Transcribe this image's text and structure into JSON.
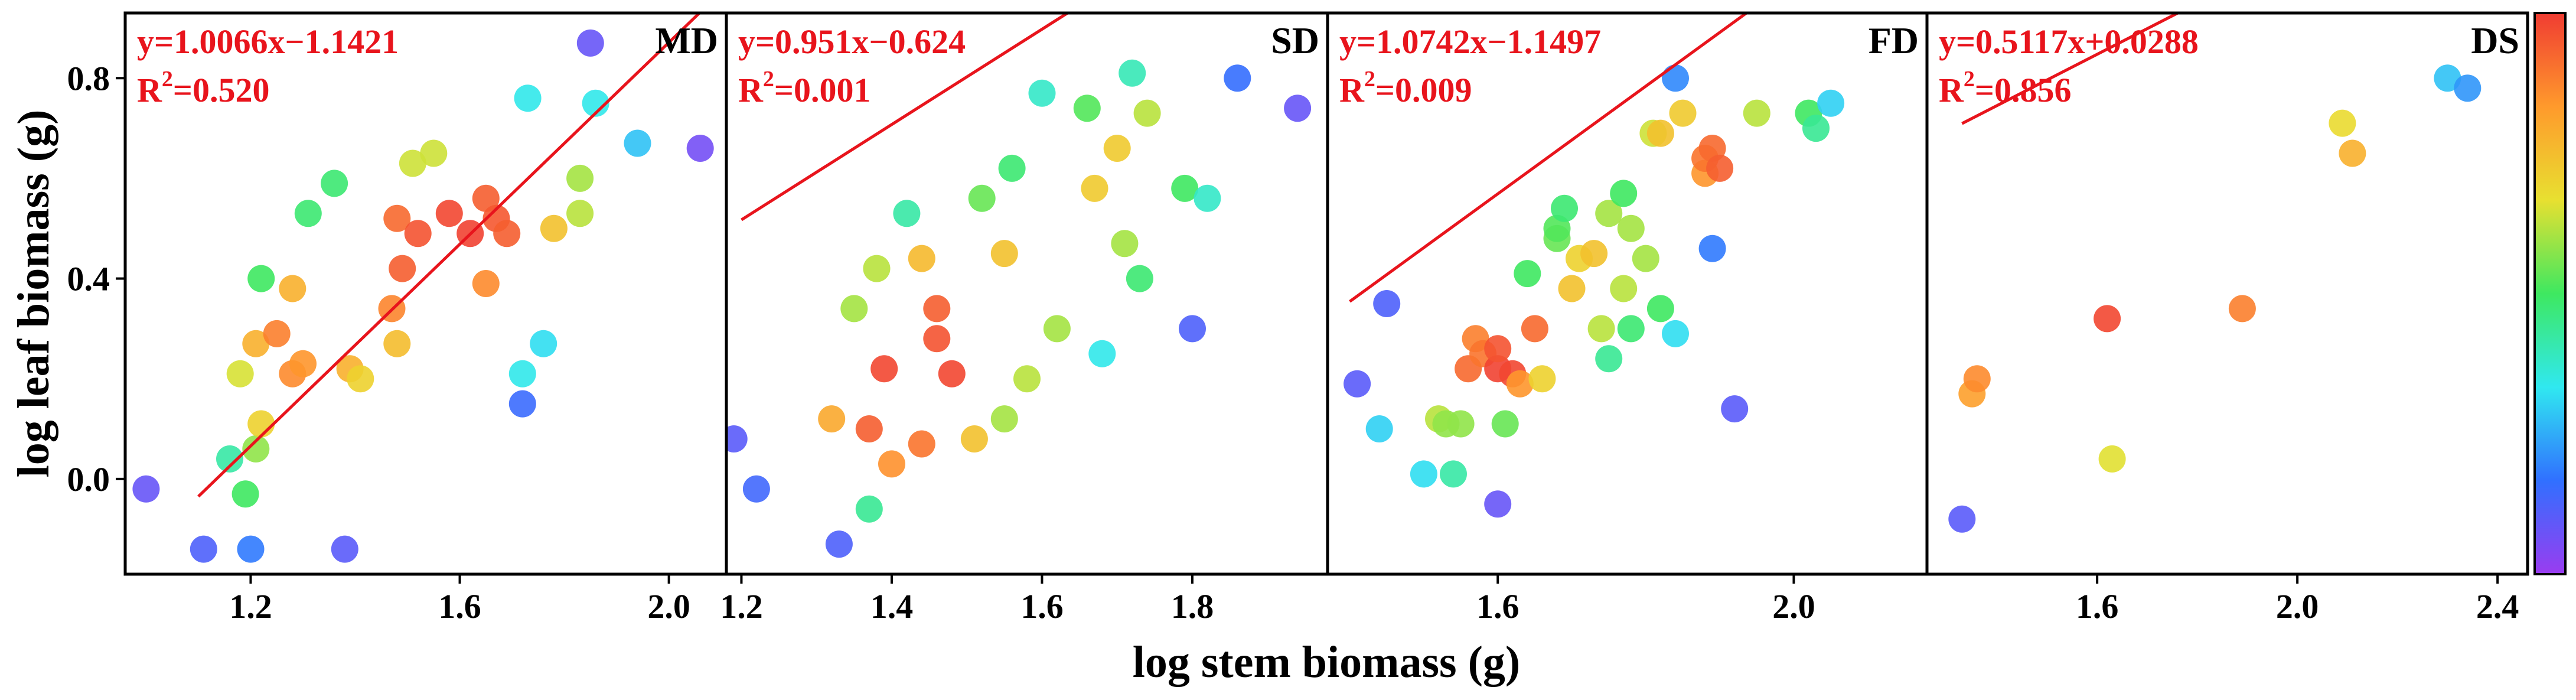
{
  "chart_data": {
    "type": "scatter",
    "ylabel": "log leaf biomass (g)",
    "xlabel": "log stem biomass (g)",
    "y_axis": {
      "range": [
        -0.19,
        0.93
      ],
      "ticks": [
        "0.0",
        "0.4",
        "0.8"
      ],
      "tick_values": [
        0.0,
        0.4,
        0.8
      ]
    },
    "colorbar": {
      "colors": [
        "#f03c32",
        "#ff9a2c",
        "#e8e030",
        "#3ee860",
        "#30e8f0",
        "#3070ff",
        "#9a3cf0"
      ]
    },
    "regression_color": "#e8141c",
    "panels": [
      {
        "name": "MD",
        "equation": "y=1.0066x−1.1421",
        "r2_label": "R",
        "r2_value": "=0.520",
        "x_range": [
          0.96,
          2.11
        ],
        "x_ticks": [
          "1.2",
          "1.6",
          "2.0"
        ],
        "x_tick_values": [
          1.2,
          1.6,
          2.0
        ],
        "fit": {
          "slope": 1.0066,
          "intercept": -1.1421,
          "x_start": 1.1,
          "x_end": 2.06
        },
        "points": [
          [
            1.0,
            -0.02,
            0.92
          ],
          [
            1.11,
            -0.14,
            0.88
          ],
          [
            1.2,
            -0.14,
            0.82
          ],
          [
            1.16,
            0.04,
            0.58
          ],
          [
            1.19,
            -0.03,
            0.5
          ],
          [
            1.21,
            0.06,
            0.42
          ],
          [
            1.22,
            0.11,
            0.3
          ],
          [
            1.18,
            0.21,
            0.35
          ],
          [
            1.21,
            0.27,
            0.22
          ],
          [
            1.25,
            0.29,
            0.12
          ],
          [
            1.28,
            0.21,
            0.14
          ],
          [
            1.3,
            0.23,
            0.16
          ],
          [
            1.28,
            0.38,
            0.22
          ],
          [
            1.22,
            0.4,
            0.5
          ],
          [
            1.31,
            0.53,
            0.52
          ],
          [
            1.36,
            0.59,
            0.52
          ],
          [
            1.38,
            -0.14,
            0.9
          ],
          [
            1.39,
            0.22,
            0.22
          ],
          [
            1.41,
            0.2,
            0.3
          ],
          [
            1.48,
            0.27,
            0.25
          ],
          [
            1.47,
            0.34,
            0.13
          ],
          [
            1.48,
            0.52,
            0.08
          ],
          [
            1.49,
            0.42,
            0.06
          ],
          [
            1.51,
            0.63,
            0.36
          ],
          [
            1.52,
            0.49,
            0.04
          ],
          [
            1.55,
            0.65,
            0.36
          ],
          [
            1.58,
            0.53,
            0.02
          ],
          [
            1.62,
            0.49,
            0.01
          ],
          [
            1.65,
            0.56,
            0.06
          ],
          [
            1.67,
            0.52,
            0.05
          ],
          [
            1.69,
            0.49,
            0.06
          ],
          [
            1.65,
            0.39,
            0.14
          ],
          [
            1.72,
            0.21,
            0.66
          ],
          [
            1.72,
            0.15,
            0.85
          ],
          [
            1.76,
            0.27,
            0.68
          ],
          [
            1.73,
            0.76,
            0.66
          ],
          [
            1.78,
            0.5,
            0.26
          ],
          [
            1.83,
            0.53,
            0.38
          ],
          [
            1.83,
            0.6,
            0.4
          ],
          [
            1.86,
            0.75,
            0.66
          ],
          [
            1.85,
            0.87,
            0.92
          ],
          [
            1.94,
            0.67,
            0.72
          ],
          [
            2.06,
            0.66,
            0.94
          ]
        ]
      },
      {
        "name": "SD",
        "equation": "y=0.951x−0.624",
        "r2_label": "R",
        "r2_value": "=0.001",
        "x_range": [
          1.18,
          1.98
        ],
        "x_ticks": [
          "1.2",
          "1.4",
          "1.6",
          "1.8"
        ],
        "x_tick_values": [
          1.2,
          1.4,
          1.6,
          1.8
        ],
        "fit": {
          "slope": 0.951,
          "intercept": -0.624,
          "x_start": 1.2,
          "x_end": 1.94
        },
        "points": [
          [
            1.19,
            0.08,
            0.9
          ],
          [
            1.22,
            -0.02,
            0.86
          ],
          [
            1.32,
            0.12,
            0.2
          ],
          [
            1.33,
            -0.13,
            0.88
          ],
          [
            1.35,
            0.34,
            0.4
          ],
          [
            1.37,
            0.1,
            0.06
          ],
          [
            1.37,
            -0.06,
            0.56
          ],
          [
            1.38,
            0.42,
            0.38
          ],
          [
            1.39,
            0.22,
            0.02
          ],
          [
            1.4,
            0.03,
            0.15
          ],
          [
            1.42,
            0.53,
            0.58
          ],
          [
            1.44,
            0.07,
            0.1
          ],
          [
            1.44,
            0.44,
            0.24
          ],
          [
            1.46,
            0.34,
            0.06
          ],
          [
            1.46,
            0.28,
            0.04
          ],
          [
            1.48,
            0.21,
            0.02
          ],
          [
            1.51,
            0.08,
            0.26
          ],
          [
            1.52,
            0.56,
            0.46
          ],
          [
            1.55,
            0.45,
            0.26
          ],
          [
            1.55,
            0.12,
            0.4
          ],
          [
            1.56,
            0.62,
            0.52
          ],
          [
            1.58,
            0.2,
            0.38
          ],
          [
            1.6,
            0.77,
            0.62
          ],
          [
            1.62,
            0.3,
            0.4
          ],
          [
            1.66,
            0.74,
            0.48
          ],
          [
            1.67,
            0.58,
            0.28
          ],
          [
            1.68,
            0.25,
            0.66
          ],
          [
            1.7,
            0.66,
            0.28
          ],
          [
            1.71,
            0.47,
            0.4
          ],
          [
            1.72,
            0.81,
            0.6
          ],
          [
            1.73,
            0.4,
            0.52
          ],
          [
            1.74,
            0.73,
            0.38
          ],
          [
            1.79,
            0.58,
            0.5
          ],
          [
            1.8,
            0.3,
            0.88
          ],
          [
            1.82,
            0.56,
            0.62
          ],
          [
            1.86,
            0.8,
            0.84
          ],
          [
            1.94,
            0.74,
            0.92
          ]
        ]
      },
      {
        "name": "FD",
        "equation": "y=1.0742x−1.1497",
        "r2_label": "R",
        "r2_value": "=0.009",
        "x_range": [
          1.37,
          2.18
        ],
        "x_ticks": [
          "1.6",
          "2.0"
        ],
        "x_tick_values": [
          1.6,
          2.0
        ],
        "fit": {
          "slope": 1.0742,
          "intercept": -1.1497,
          "x_start": 1.4,
          "x_end": 2.1
        },
        "points": [
          [
            1.41,
            0.19,
            0.9
          ],
          [
            1.44,
            0.1,
            0.7
          ],
          [
            1.45,
            0.35,
            0.88
          ],
          [
            1.5,
            0.01,
            0.68
          ],
          [
            1.52,
            0.12,
            0.38
          ],
          [
            1.53,
            0.11,
            0.42
          ],
          [
            1.54,
            0.01,
            0.58
          ],
          [
            1.55,
            0.11,
            0.42
          ],
          [
            1.56,
            0.22,
            0.08
          ],
          [
            1.57,
            0.28,
            0.12
          ],
          [
            1.58,
            0.25,
            0.1
          ],
          [
            1.6,
            0.22,
            0.01
          ],
          [
            1.6,
            0.26,
            0.04
          ],
          [
            1.6,
            -0.05,
            0.92
          ],
          [
            1.61,
            0.11,
            0.46
          ],
          [
            1.62,
            0.21,
            0.02
          ],
          [
            1.63,
            0.19,
            0.16
          ],
          [
            1.64,
            0.41,
            0.5
          ],
          [
            1.65,
            0.3,
            0.08
          ],
          [
            1.66,
            0.2,
            0.3
          ],
          [
            1.68,
            0.48,
            0.46
          ],
          [
            1.68,
            0.5,
            0.48
          ],
          [
            1.69,
            0.54,
            0.52
          ],
          [
            1.7,
            0.38,
            0.26
          ],
          [
            1.71,
            0.44,
            0.3
          ],
          [
            1.73,
            0.45,
            0.26
          ],
          [
            1.74,
            0.3,
            0.38
          ],
          [
            1.75,
            0.53,
            0.4
          ],
          [
            1.75,
            0.24,
            0.56
          ],
          [
            1.77,
            0.57,
            0.5
          ],
          [
            1.77,
            0.38,
            0.38
          ],
          [
            1.78,
            0.5,
            0.4
          ],
          [
            1.78,
            0.3,
            0.52
          ],
          [
            1.8,
            0.44,
            0.4
          ],
          [
            1.81,
            0.69,
            0.36
          ],
          [
            1.82,
            0.34,
            0.5
          ],
          [
            1.82,
            0.69,
            0.26
          ],
          [
            1.84,
            0.29,
            0.68
          ],
          [
            1.84,
            0.8,
            0.8
          ],
          [
            1.85,
            0.73,
            0.28
          ],
          [
            1.88,
            0.61,
            0.16
          ],
          [
            1.88,
            0.64,
            0.1
          ],
          [
            1.89,
            0.66,
            0.08
          ],
          [
            1.89,
            0.46,
            0.82
          ],
          [
            1.9,
            0.62,
            0.06
          ],
          [
            1.92,
            0.14,
            0.9
          ],
          [
            1.95,
            0.73,
            0.38
          ],
          [
            2.02,
            0.73,
            0.5
          ],
          [
            2.03,
            0.7,
            0.56
          ],
          [
            2.05,
            0.75,
            0.7
          ]
        ]
      },
      {
        "name": "DS",
        "equation": "y=0.5117x+0.0288",
        "r2_label": "R",
        "r2_value": "=0.856",
        "x_range": [
          1.26,
          2.46
        ],
        "x_ticks": [
          "1.6",
          "2.0",
          "2.4"
        ],
        "x_tick_values": [
          1.6,
          2.0,
          2.4
        ],
        "fit": {
          "slope": 0.5117,
          "intercept": 0.0288,
          "x_start": 1.33,
          "x_end": 2.34
        },
        "points": [
          [
            1.33,
            -0.08,
            0.9
          ],
          [
            1.35,
            0.17,
            0.18
          ],
          [
            1.36,
            0.2,
            0.14
          ],
          [
            1.62,
            0.32,
            0.02
          ],
          [
            1.63,
            0.04,
            0.34
          ],
          [
            1.89,
            0.34,
            0.12
          ],
          [
            2.09,
            0.71,
            0.32
          ],
          [
            2.11,
            0.65,
            0.22
          ],
          [
            2.3,
            0.8,
            0.72
          ],
          [
            2.34,
            0.78,
            0.78
          ]
        ]
      }
    ]
  }
}
